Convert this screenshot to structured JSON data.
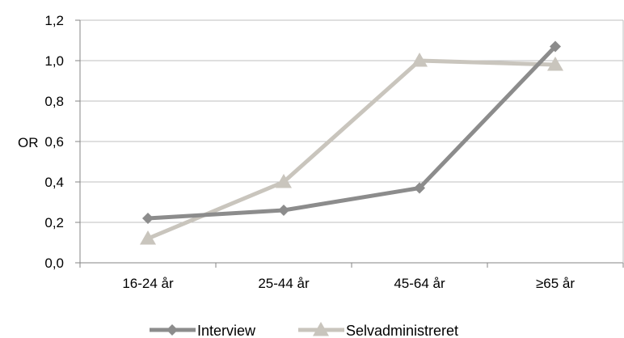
{
  "chart_data": {
    "type": "line",
    "categories": [
      "16-24 år",
      "25-44 år",
      "45-64 år",
      "≥65 år"
    ],
    "ylabel": "OR",
    "ylim": [
      0,
      1.2
    ],
    "yticks": [
      "0,0",
      "0,2",
      "0,4",
      "0,6",
      "0,8",
      "1,0",
      "1,2"
    ],
    "grid": true,
    "legend_position": "bottom",
    "series": [
      {
        "name": "Interview",
        "values": [
          0.22,
          0.26,
          0.37,
          1.07
        ],
        "color": "#8c8c8c",
        "marker": "diamond"
      },
      {
        "name": "Selvadministreret",
        "values": [
          0.12,
          0.4,
          1.0,
          0.98
        ],
        "color": "#c9c5bd",
        "marker": "triangle"
      }
    ]
  }
}
